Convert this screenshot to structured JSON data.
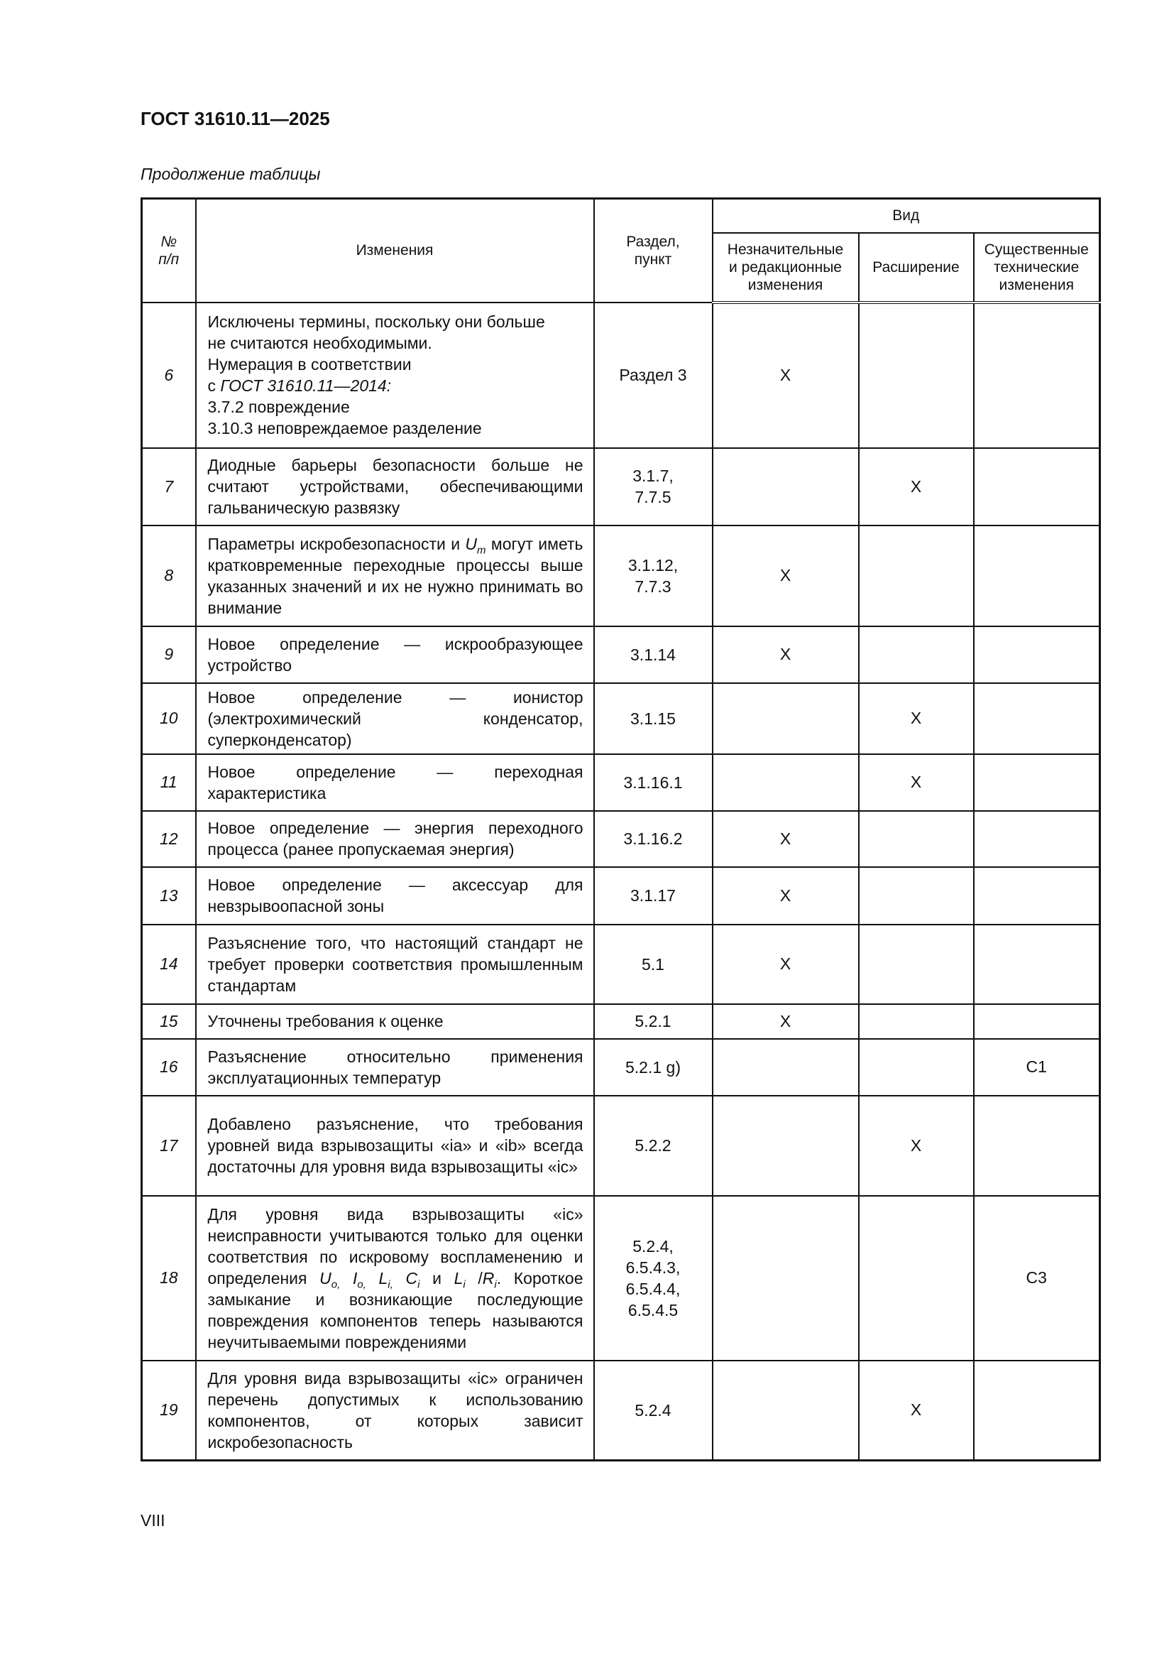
{
  "header": {
    "title": "ГОСТ 31610.11—2025",
    "continuation": "Продолжение таблицы"
  },
  "table": {
    "columns": {
      "num": "№\nп/п",
      "changes": "Изменения",
      "section": "Раздел,\nпункт",
      "kind": "Вид",
      "minor": "Незначительные\nи редакционные\nизменения",
      "extension": "Расширение",
      "technical": "Существенные\nтехнические\nизменения"
    },
    "rows": [
      {
        "num": "6",
        "desc": [
          {
            "t": "Исключены термины, поскольку они больше\nне считаются необходимыми.\nНумерация в соответствии\nс "
          },
          {
            "t": "ГОСТ 31610.11—2014:",
            "i": true
          },
          {
            "t": "\n3.7.2 повреждение\n3.10.3 неповреждаемое разделение"
          }
        ],
        "section": "Раздел 3",
        "minor": "X",
        "extension": "",
        "technical": ""
      },
      {
        "num": "7",
        "desc": [
          {
            "t": "Диодные барьеры безопасности больше не считают устройствами, обеспечивающими гальваническую развязку"
          }
        ],
        "section": "3.1.7,\n7.7.5",
        "minor": "",
        "extension": "X",
        "technical": ""
      },
      {
        "num": "8",
        "desc": [
          {
            "t": "Параметры искробезопасности и "
          },
          {
            "t": "U",
            "i": true,
            "sub": "m"
          },
          {
            "t": " могут иметь кратковременные переходные процессы выше указанных значений и их не нужно принимать во внимание"
          }
        ],
        "section": "3.1.12,\n7.7.3",
        "minor": "X",
        "extension": "",
        "technical": ""
      },
      {
        "num": "9",
        "desc": [
          {
            "t": "Новое определение — искрообразующее устройство"
          }
        ],
        "section": "3.1.14",
        "minor": "X",
        "extension": "",
        "technical": ""
      },
      {
        "num": "10",
        "desc": [
          {
            "t": "Новое определение — ионистор (электрохимический конденсатор, суперконденсатор)"
          }
        ],
        "section": "3.1.15",
        "minor": "",
        "extension": "X",
        "technical": ""
      },
      {
        "num": "11",
        "desc": [
          {
            "t": "Новое определение — переходная характеристика"
          }
        ],
        "section": "3.1.16.1",
        "minor": "",
        "extension": "X",
        "technical": ""
      },
      {
        "num": "12",
        "desc": [
          {
            "t": "Новое определение — энергия переходного процесса (ранее пропускаемая энергия)"
          }
        ],
        "section": "3.1.16.2",
        "minor": "X",
        "extension": "",
        "technical": ""
      },
      {
        "num": "13",
        "desc": [
          {
            "t": "Новое определение — аксессуар для невзрывоопасной зоны"
          }
        ],
        "section": "3.1.17",
        "minor": "X",
        "extension": "",
        "technical": ""
      },
      {
        "num": "14",
        "desc": [
          {
            "t": "Разъяснение того, что настоящий стандарт не требует проверки соответствия промышленным стандартам"
          }
        ],
        "section": "5.1",
        "minor": "X",
        "extension": "",
        "technical": ""
      },
      {
        "num": "15",
        "desc": [
          {
            "t": "Уточнены требования к оценке"
          }
        ],
        "section": "5.2.1",
        "minor": "X",
        "extension": "",
        "technical": ""
      },
      {
        "num": "16",
        "desc": [
          {
            "t": "Разъяснение относительно применения эксплуатационных температур"
          }
        ],
        "section": "5.2.1 g)",
        "minor": "",
        "extension": "",
        "technical": "C1"
      },
      {
        "num": "17",
        "desc": [
          {
            "t": "Добавлено разъяснение, что требования уровней вида взрывозащиты «ia» и «ib» всегда достаточны для уровня вида взрывозащиты «ic»"
          }
        ],
        "section": "5.2.2",
        "minor": "",
        "extension": "X",
        "technical": ""
      },
      {
        "num": "18",
        "desc": [
          {
            "t": "Для уровня вида взрывозащиты «ic» неисправности учитываются только для оценки соответствия по искровому воспламенению и определения "
          },
          {
            "t": "U",
            "i": true,
            "sub": "o,"
          },
          {
            "t": " "
          },
          {
            "t": "I",
            "i": true,
            "sub": "o,"
          },
          {
            "t": " "
          },
          {
            "t": "L",
            "i": true,
            "sub": "i,"
          },
          {
            "t": " "
          },
          {
            "t": "C",
            "i": true,
            "sub": "i"
          },
          {
            "t": " и "
          },
          {
            "t": "L",
            "i": true,
            "sub": "i"
          },
          {
            "t": " /"
          },
          {
            "t": "R",
            "i": true,
            "sub": "i"
          },
          {
            "t": ". Короткое замыкание и возникающие последующие повреждения компонентов теперь называются неучитываемыми повреждениями"
          }
        ],
        "section": "5.2.4,\n6.5.4.3,\n6.5.4.4,\n6.5.4.5",
        "minor": "",
        "extension": "",
        "technical": "C3"
      },
      {
        "num": "19",
        "desc": [
          {
            "t": "Для уровня вида взрывозащиты «ic» ограничен перечень допустимых к использованию компонентов, от которых зависит искробезопасность"
          }
        ],
        "section": "5.2.4",
        "minor": "",
        "extension": "X",
        "technical": ""
      }
    ]
  },
  "footer": {
    "page": "VIII"
  }
}
